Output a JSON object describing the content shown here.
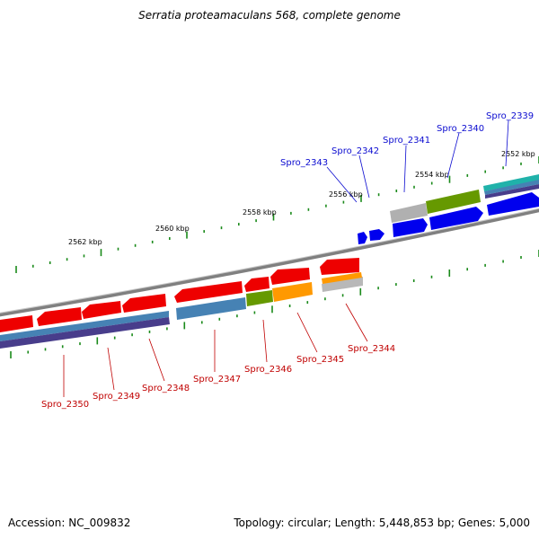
{
  "title": "Serratia proteamaculans 568, complete genome",
  "footer": {
    "accession": "Accession: NC_009832",
    "topology": "Topology: circular; Length: 5,448,853 bp; Genes: 5,000"
  },
  "colors": {
    "backbone": "#808080",
    "tick": "#1a8a1a",
    "forward_gene": "#0000ee",
    "reverse_gene": "#ee0000",
    "orange": "#ff9900",
    "olive": "#669900",
    "steelblue": "#4682b4",
    "darkslate": "#483d8b",
    "gray": "#b0b0b0",
    "teal": "#20b2aa",
    "label_forward": "#0b0bd0",
    "label_reverse": "#c00000"
  },
  "scale_labels": [
    "2562 kbp",
    "2560 kbp",
    "2558 kbp",
    "2556 kbp",
    "2554 kbp",
    "2552 kbp"
  ],
  "genes_forward": [
    "Spro_2343",
    "Spro_2342",
    "Spro_2341",
    "Spro_2340",
    "Spro_2339"
  ],
  "genes_reverse": [
    "Spro_2350",
    "Spro_2349",
    "Spro_2348",
    "Spro_2347",
    "Spro_2346",
    "Spro_2345",
    "Spro_2344"
  ]
}
